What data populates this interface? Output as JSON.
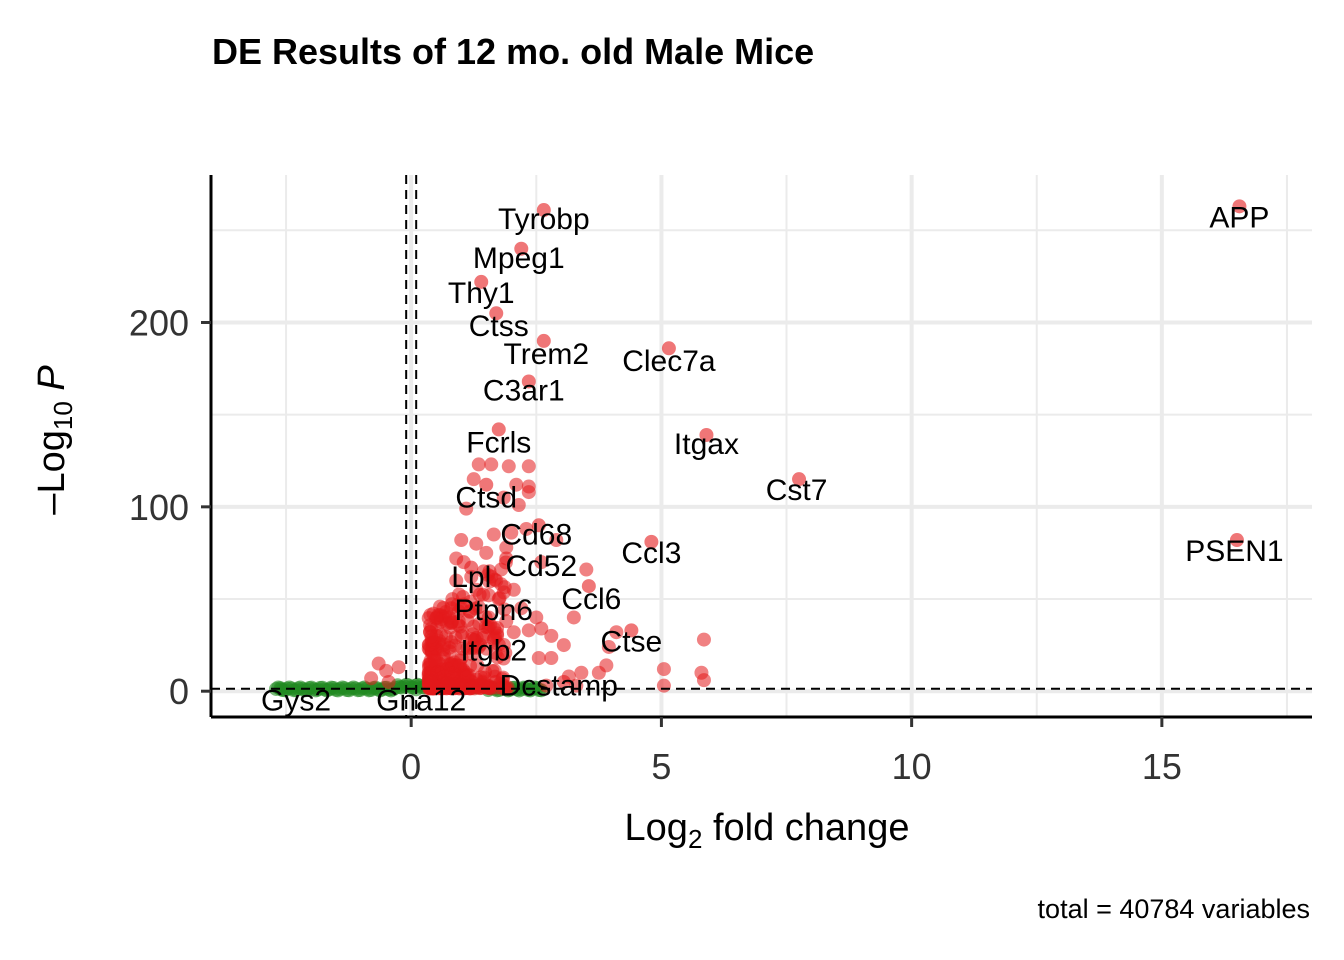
{
  "chart_data": {
    "type": "scatter",
    "title": "DE Results of 12 mo. old Male Mice",
    "caption": "total = 40784 variables",
    "xlabel": {
      "main": "Log",
      "sub": "2",
      "rest": " fold change"
    },
    "ylabel": {
      "main": "–Log",
      "sub": "10",
      "rest": " P"
    },
    "xlim": [
      -4,
      18
    ],
    "ylim": [
      -14,
      280
    ],
    "x_ticks": [
      0,
      5,
      10,
      15
    ],
    "y_ticks": [
      0,
      100,
      200
    ],
    "grid": true,
    "fc_cutoff": [
      -0.1,
      0.1
    ],
    "p_cutoff": 1.3,
    "colors": {
      "significant": "#e41a1c",
      "not_significant": "#228b22",
      "cutoff_line": "#000000",
      "grid": "#ebebeb",
      "axis": "#000000"
    },
    "labeled_points": [
      {
        "gene": "APP",
        "x": 16.55,
        "y": 263
      },
      {
        "gene": "Tyrobp",
        "x": 2.65,
        "y": 261
      },
      {
        "gene": "Mpeg1",
        "x": 2.2,
        "y": 240
      },
      {
        "gene": "Thy1",
        "x": 1.4,
        "y": 222
      },
      {
        "gene": "Ctss",
        "x": 1.7,
        "y": 205
      },
      {
        "gene": "Trem2",
        "x": 2.65,
        "y": 190
      },
      {
        "gene": "Clec7a",
        "x": 5.15,
        "y": 186
      },
      {
        "gene": "C3ar1",
        "x": 2.35,
        "y": 168
      },
      {
        "gene": "Fcrls",
        "x": 1.75,
        "y": 142
      },
      {
        "gene": "Itgax",
        "x": 5.9,
        "y": 139
      },
      {
        "gene": "Cst7",
        "x": 7.75,
        "y": 115
      },
      {
        "gene": "Ctsd",
        "x": 1.5,
        "y": 112
      },
      {
        "gene": "Cd68",
        "x": 2.55,
        "y": 90
      },
      {
        "gene": "PSEN1",
        "x": 16.5,
        "y": 82
      },
      {
        "gene": "Ccl3",
        "x": 4.8,
        "y": 81
      },
      {
        "gene": "Cd52",
        "x": 1.9,
        "y": 72
      },
      {
        "gene": "Lpl",
        "x": 1.2,
        "y": 67
      },
      {
        "gene": "Ccl6",
        "x": 3.55,
        "y": 57
      },
      {
        "gene": "Ptpn6",
        "x": 1.75,
        "y": 50
      },
      {
        "gene": "Ctse",
        "x": 4.4,
        "y": 33
      },
      {
        "gene": "Itgb2",
        "x": 1.65,
        "y": 28
      },
      {
        "gene": "Dcstamp",
        "x": 3.05,
        "y": 5
      },
      {
        "gene": "Gna12",
        "x": 0.1,
        "y": 1
      },
      {
        "gene": "Gys2",
        "x": -2.6,
        "y": 1
      }
    ],
    "label_positions": [
      {
        "gene": "APP",
        "x": 16.55,
        "y": 257
      },
      {
        "gene": "Tyrobp",
        "x": 2.65,
        "y": 256
      },
      {
        "gene": "Mpeg1",
        "x": 2.15,
        "y": 235
      },
      {
        "gene": "Thy1",
        "x": 1.4,
        "y": 216
      },
      {
        "gene": "Ctss",
        "x": 1.75,
        "y": 198
      },
      {
        "gene": "Trem2",
        "x": 2.7,
        "y": 183
      },
      {
        "gene": "Clec7a",
        "x": 5.15,
        "y": 179
      },
      {
        "gene": "C3ar1",
        "x": 2.25,
        "y": 163
      },
      {
        "gene": "Fcrls",
        "x": 1.75,
        "y": 135
      },
      {
        "gene": "Itgax",
        "x": 5.9,
        "y": 134
      },
      {
        "gene": "Cst7",
        "x": 7.7,
        "y": 109
      },
      {
        "gene": "Ctsd",
        "x": 1.5,
        "y": 105
      },
      {
        "gene": "Cd68",
        "x": 2.5,
        "y": 85
      },
      {
        "gene": "PSEN1",
        "x": 16.45,
        "y": 76
      },
      {
        "gene": "Ccl3",
        "x": 4.8,
        "y": 75
      },
      {
        "gene": "Cd52",
        "x": 2.6,
        "y": 68
      },
      {
        "gene": "Lpl",
        "x": 1.2,
        "y": 62
      },
      {
        "gene": "Ccl6",
        "x": 3.6,
        "y": 50
      },
      {
        "gene": "Ptpn6",
        "x": 1.65,
        "y": 44
      },
      {
        "gene": "Ctse",
        "x": 4.4,
        "y": 27
      },
      {
        "gene": "Itgb2",
        "x": 1.65,
        "y": 22
      },
      {
        "gene": "Dcstamp",
        "x": 2.95,
        "y": 3
      },
      {
        "gene": "Gna12",
        "x": 0.2,
        "y": -5
      },
      {
        "gene": "Gys2",
        "x": -2.3,
        "y": -5
      }
    ],
    "significant_points": [
      [
        2.35,
        122
      ],
      [
        1.35,
        123
      ],
      [
        1.6,
        123
      ],
      [
        1.95,
        122
      ],
      [
        2.1,
        112
      ],
      [
        2.35,
        111
      ],
      [
        1.25,
        115
      ],
      [
        1.1,
        99
      ],
      [
        1.85,
        105
      ],
      [
        2.15,
        101
      ],
      [
        2.35,
        108
      ],
      [
        1.0,
        82
      ],
      [
        1.3,
        80
      ],
      [
        1.65,
        85
      ],
      [
        2.0,
        86
      ],
      [
        2.3,
        88
      ],
      [
        2.9,
        82
      ],
      [
        1.9,
        78
      ],
      [
        2.6,
        70
      ],
      [
        3.5,
        66
      ],
      [
        1.05,
        70
      ],
      [
        0.9,
        72
      ],
      [
        1.5,
        75
      ],
      [
        3.25,
        40
      ],
      [
        2.6,
        34
      ],
      [
        2.35,
        33
      ],
      [
        2.05,
        32
      ],
      [
        3.95,
        24
      ],
      [
        4.1,
        32
      ],
      [
        5.05,
        12
      ],
      [
        5.05,
        3
      ],
      [
        5.8,
        10
      ],
      [
        5.85,
        6
      ],
      [
        5.85,
        28
      ],
      [
        3.9,
        14
      ],
      [
        3.75,
        10
      ],
      [
        3.4,
        10
      ],
      [
        3.15,
        8
      ],
      [
        2.8,
        18
      ],
      [
        2.55,
        18
      ],
      [
        3.3,
        3
      ],
      [
        2.7,
        3
      ],
      [
        -0.65,
        15
      ],
      [
        -0.5,
        11
      ],
      [
        -0.25,
        13
      ],
      [
        -0.8,
        7
      ],
      [
        -0.45,
        5
      ],
      [
        0.8,
        45
      ],
      [
        1.05,
        47
      ],
      [
        1.3,
        55
      ],
      [
        1.55,
        52
      ],
      [
        1.8,
        58
      ],
      [
        2.05,
        55
      ],
      [
        2.2,
        45
      ],
      [
        2.5,
        40
      ],
      [
        2.8,
        30
      ],
      [
        3.05,
        25
      ],
      [
        0.9,
        60
      ],
      [
        1.2,
        62
      ],
      [
        1.45,
        65
      ],
      [
        1.7,
        60
      ],
      [
        0.95,
        38
      ],
      [
        1.25,
        35
      ],
      [
        1.55,
        40
      ],
      [
        1.9,
        38
      ]
    ]
  }
}
